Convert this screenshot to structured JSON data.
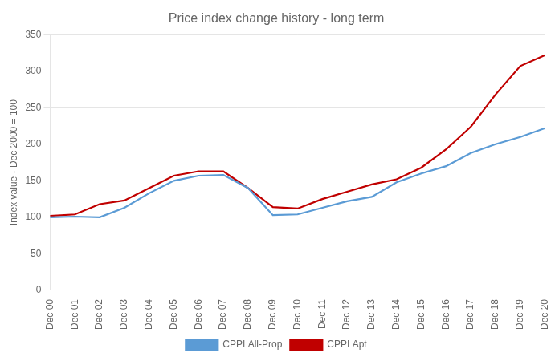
{
  "chart_data": {
    "type": "line",
    "title": "Price index change history - long term",
    "ylabel": "Index value - Dec 2000 = 100",
    "categories": [
      "Dec 00",
      "Dec 01",
      "Dec 02",
      "Dec 03",
      "Dec 04",
      "Dec 05",
      "Dec 06",
      "Dec 07",
      "Dec 08",
      "Dec 09",
      "Dec 10",
      "Dec 11",
      "Dec 12",
      "Dec 13",
      "Dec 14",
      "Dec 15",
      "Dec 16",
      "Dec 17",
      "Dec 18",
      "Dec 19",
      "Dec 20"
    ],
    "series": [
      {
        "name": "CPPI All-Prop",
        "color": "#5B9BD5",
        "values": [
          100,
          101,
          100,
          113,
          133,
          150,
          157,
          158,
          140,
          103,
          104,
          113,
          122,
          128,
          148,
          160,
          170,
          188,
          200,
          210,
          222
        ]
      },
      {
        "name": "CPPI Apt",
        "color": "#C00000",
        "values": [
          102,
          104,
          118,
          123,
          140,
          157,
          163,
          163,
          140,
          114,
          112,
          125,
          135,
          145,
          152,
          168,
          193,
          224,
          268,
          307,
          322
        ]
      }
    ],
    "ylim": [
      0,
      350
    ],
    "yticks": [
      0,
      50,
      100,
      150,
      200,
      250,
      300,
      350
    ],
    "grid": true,
    "legend": "bottom"
  }
}
